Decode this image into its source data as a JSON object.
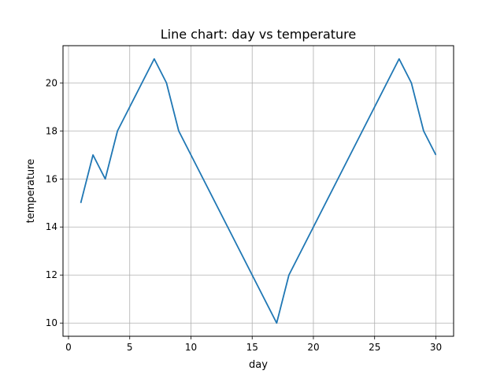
{
  "chart_data": {
    "type": "line",
    "title": "Line chart: day vs temperature",
    "xlabel": "day",
    "ylabel": "temperature",
    "xlim": [
      -0.45,
      31.45
    ],
    "ylim": [
      9.45,
      21.55
    ],
    "x_ticks": [
      0,
      5,
      10,
      15,
      20,
      25,
      30
    ],
    "y_ticks": [
      10,
      12,
      14,
      16,
      18,
      20
    ],
    "grid": true,
    "series": [
      {
        "color": "#1f77b4",
        "x": [
          1,
          2,
          3,
          4,
          5,
          6,
          7,
          8,
          9,
          10,
          11,
          12,
          13,
          14,
          15,
          16,
          17,
          18,
          19,
          20,
          21,
          22,
          23,
          24,
          25,
          26,
          27,
          28,
          29,
          30
        ],
        "y": [
          15,
          17,
          16,
          18,
          19,
          20,
          21,
          20,
          18,
          17,
          16,
          15,
          14,
          13,
          12,
          11,
          10,
          12,
          13,
          14,
          15,
          16,
          17,
          18,
          19,
          20,
          21,
          20,
          18,
          17
        ]
      }
    ]
  }
}
